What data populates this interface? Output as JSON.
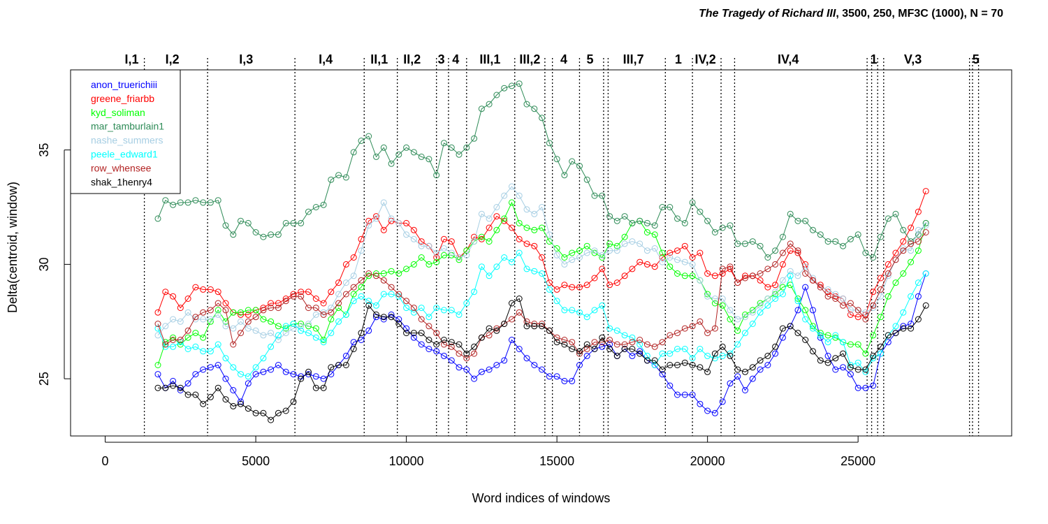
{
  "title": {
    "play": "The Tragedy of Richard III",
    "params": ", 3500, 250, MF3C (1000), N = 70"
  },
  "chart_data": {
    "type": "line",
    "xlabel": "Word indices of windows",
    "ylabel": "Delta(centroid, window)",
    "xlim": [
      -1150,
      30100
    ],
    "ylim": [
      22.5,
      38.5
    ],
    "xticks": [
      0,
      5000,
      10000,
      15000,
      20000,
      25000
    ],
    "xtick_labels": [
      "0",
      "5000",
      "10000",
      "15000",
      "20000",
      "25000"
    ],
    "yticks": [
      25,
      30,
      35
    ],
    "ytick_labels": [
      "25",
      "30",
      "35"
    ],
    "grid": false,
    "legend_placement": "top-left",
    "scene_boundaries": [
      1300,
      3400,
      6300,
      8600,
      9700,
      11000,
      11400,
      12000,
      13600,
      14600,
      14850,
      15750,
      16550,
      16700,
      18600,
      19500,
      20450,
      20900,
      25300,
      25450,
      25650,
      25850,
      28700,
      28800,
      29000
    ],
    "scene_labels": [
      {
        "label": "I,1",
        "x": 880
      },
      {
        "label": "I,2",
        "x": 2230
      },
      {
        "label": "I,3",
        "x": 4680
      },
      {
        "label": "I,4",
        "x": 7320
      },
      {
        "label": "II,1",
        "x": 9100
      },
      {
        "label": "II,2",
        "x": 10190
      },
      {
        "label": "3",
        "x": 11160
      },
      {
        "label": "4",
        "x": 11640
      },
      {
        "label": "III,1",
        "x": 12780
      },
      {
        "label": "III,2",
        "x": 14100
      },
      {
        "label": "4",
        "x": 15230
      },
      {
        "label": "5",
        "x": 16100
      },
      {
        "label": "III,7",
        "x": 17540
      },
      {
        "label": "1",
        "x": 19030
      },
      {
        "label": "IV,2",
        "x": 19930
      },
      {
        "label": "IV,4",
        "x": 22680
      },
      {
        "label": "1",
        "x": 25520
      },
      {
        "label": "V,3",
        "x": 26820
      },
      {
        "label": "5",
        "x": 28910
      }
    ],
    "x": [
      1750,
      2000,
      2250,
      2500,
      2750,
      3000,
      3250,
      3500,
      3750,
      4000,
      4250,
      4500,
      4750,
      5000,
      5250,
      5500,
      5750,
      6000,
      6250,
      6500,
      6750,
      7000,
      7250,
      7500,
      7750,
      8000,
      8250,
      8500,
      8750,
      9000,
      9250,
      9500,
      9750,
      10000,
      10250,
      10500,
      10750,
      11000,
      11250,
      11500,
      11750,
      12000,
      12250,
      12500,
      12750,
      13000,
      13250,
      13500,
      13750,
      14000,
      14250,
      14500,
      14750,
      15000,
      15250,
      15500,
      15750,
      16000,
      16250,
      16500,
      16750,
      17000,
      17250,
      17500,
      17750,
      18000,
      18250,
      18500,
      18750,
      19000,
      19250,
      19500,
      19750,
      20000,
      20250,
      20500,
      20750,
      21000,
      21250,
      21500,
      21750,
      22000,
      22250,
      22500,
      22750,
      23000,
      23250,
      23500,
      23750,
      24000,
      24250,
      24500,
      24750,
      25000,
      25250,
      25500,
      25750,
      26000,
      26250,
      26500,
      26750,
      27000,
      27250
    ],
    "series": [
      {
        "name": "anon_truerichiii",
        "color": "#0000ff",
        "values": [
          25.2,
          24.6,
          24.9,
          24.5,
          24.8,
          25.2,
          25.4,
          25.5,
          25.6,
          25.0,
          24.5,
          24.0,
          24.8,
          25.2,
          25.3,
          25.4,
          25.6,
          25.3,
          25.2,
          25.1,
          25.2,
          25.1,
          25.0,
          25.2,
          25.6,
          26.0,
          26.6,
          26.7,
          27.1,
          27.7,
          27.6,
          27.8,
          27.6,
          27.2,
          26.8,
          26.5,
          26.3,
          26.2,
          26.0,
          25.8,
          25.5,
          25.4,
          25.0,
          25.3,
          25.4,
          25.6,
          25.8,
          26.7,
          26.3,
          25.9,
          25.6,
          25.4,
          25.1,
          25.1,
          24.9,
          24.9,
          25.6,
          26.0,
          26.3,
          26.4,
          26.5,
          26.0,
          26.3,
          26.0,
          26.2,
          25.8,
          25.6,
          25.2,
          24.7,
          24.3,
          24.3,
          24.3,
          23.9,
          23.6,
          23.5,
          24.0,
          24.8,
          25.1,
          24.5,
          25.0,
          25.4,
          25.6,
          26.1,
          26.8,
          27.3,
          28.0,
          29.0,
          28.0,
          26.8,
          26.0,
          25.4,
          25.5,
          25.2,
          24.6,
          24.6,
          24.7,
          26.1,
          26.6,
          27.0,
          27.3,
          27.4,
          28.6,
          29.6
        ]
      },
      {
        "name": "greene_friarbb",
        "color": "#ff0000",
        "values": [
          27.9,
          28.8,
          28.6,
          28.1,
          28.5,
          29.0,
          28.9,
          28.9,
          28.8,
          28.3,
          27.9,
          27.8,
          27.8,
          28.0,
          28.1,
          28.3,
          28.3,
          28.5,
          28.7,
          28.8,
          28.8,
          28.5,
          28.3,
          28.8,
          29.2,
          30.0,
          30.3,
          31.1,
          31.9,
          32.1,
          31.5,
          31.9,
          31.8,
          31.8,
          31.5,
          31.0,
          30.8,
          30.3,
          31.1,
          31.0,
          30.3,
          30.6,
          31.2,
          31.1,
          31.6,
          32.1,
          31.9,
          31.6,
          31.1,
          30.9,
          30.8,
          30.3,
          29.2,
          28.9,
          29.1,
          29.0,
          29.0,
          29.1,
          29.4,
          29.8,
          29.1,
          29.2,
          29.5,
          29.8,
          30.1,
          30.0,
          29.9,
          30.3,
          30.5,
          30.6,
          30.8,
          30.3,
          30.5,
          29.6,
          29.5,
          29.6,
          29.8,
          29.2,
          29.5,
          29.5,
          29.3,
          29.0,
          29.1,
          30.0,
          30.6,
          30.5,
          30.0,
          29.3,
          29.1,
          28.8,
          28.6,
          28.5,
          27.8,
          27.7,
          27.8,
          28.8,
          29.4,
          30.0,
          30.5,
          31.0,
          31.6,
          32.3,
          33.2
        ]
      },
      {
        "name": "kyd_soliman",
        "color": "#00ff00",
        "values": [
          25.6,
          26.6,
          26.8,
          26.5,
          26.8,
          27.0,
          26.8,
          27.5,
          28.0,
          27.5,
          27.9,
          27.9,
          28.0,
          28.0,
          27.6,
          27.5,
          27.3,
          27.2,
          27.4,
          27.4,
          27.3,
          27.2,
          26.7,
          27.6,
          28.1,
          27.8,
          28.7,
          29.0,
          29.5,
          29.6,
          29.6,
          29.7,
          29.6,
          29.8,
          30.0,
          30.3,
          30.0,
          30.1,
          30.4,
          30.4,
          30.2,
          30.6,
          31.0,
          31.2,
          31.0,
          31.5,
          32.0,
          32.7,
          31.8,
          31.6,
          31.5,
          31.6,
          31.0,
          30.7,
          30.3,
          30.5,
          30.6,
          30.8,
          30.5,
          30.3,
          30.9,
          30.8,
          31.2,
          31.8,
          31.9,
          31.4,
          31.3,
          30.5,
          29.9,
          29.6,
          29.5,
          29.5,
          29.3,
          28.7,
          28.3,
          28.2,
          27.6,
          27.1,
          27.8,
          28.0,
          28.3,
          28.5,
          28.7,
          29.0,
          29.1,
          28.5,
          28.0,
          27.3,
          27.0,
          26.9,
          26.8,
          26.6,
          26.5,
          26.5,
          26.1,
          26.9,
          27.7,
          28.6,
          29.2,
          29.6,
          30.1,
          30.6,
          31.8
        ]
      },
      {
        "name": "mar_tamburlain1",
        "color": "#2e8b57",
        "values": [
          32.0,
          32.8,
          32.6,
          32.7,
          32.7,
          32.8,
          32.7,
          32.7,
          32.8,
          31.7,
          31.3,
          31.9,
          31.8,
          31.4,
          31.2,
          31.3,
          31.3,
          31.8,
          31.8,
          31.8,
          32.3,
          32.5,
          32.6,
          33.7,
          33.9,
          33.8,
          34.9,
          35.4,
          35.6,
          34.7,
          35.1,
          34.4,
          34.8,
          35.1,
          34.9,
          34.7,
          34.6,
          33.9,
          35.3,
          35.1,
          34.8,
          35.1,
          35.5,
          36.8,
          37.0,
          37.4,
          37.7,
          37.8,
          37.9,
          37.0,
          36.8,
          36.4,
          35.3,
          34.6,
          33.9,
          34.5,
          34.3,
          33.7,
          33.0,
          33.0,
          32.1,
          31.9,
          32.1,
          31.8,
          31.9,
          31.8,
          31.7,
          32.5,
          32.5,
          32.0,
          31.8,
          32.7,
          32.3,
          31.9,
          31.4,
          31.6,
          31.7,
          30.9,
          30.9,
          31.0,
          30.8,
          30.3,
          30.6,
          31.2,
          32.2,
          31.9,
          31.9,
          31.5,
          31.3,
          31.0,
          31.0,
          30.8,
          31.1,
          31.3,
          30.5,
          30.3,
          31.2,
          32.0,
          32.2,
          31.5,
          31.0,
          31.3,
          31.8
        ]
      },
      {
        "name": "nashe_summers",
        "color": "#a6cee3",
        "values": [
          26.9,
          27.3,
          27.6,
          27.5,
          27.9,
          27.6,
          27.6,
          27.6,
          27.8,
          27.3,
          27.2,
          27.5,
          27.2,
          27.1,
          26.9,
          27.0,
          26.7,
          27.0,
          27.2,
          27.3,
          27.4,
          27.8,
          27.9,
          28.1,
          28.7,
          29.2,
          29.5,
          30.6,
          31.7,
          32.0,
          32.7,
          32.0,
          31.8,
          31.3,
          31.1,
          30.8,
          30.8,
          30.5,
          30.7,
          30.5,
          30.3,
          30.4,
          31.0,
          32.2,
          32.0,
          32.5,
          33.0,
          33.4,
          33.0,
          32.4,
          32.2,
          32.5,
          31.3,
          30.4,
          30.0,
          30.2,
          30.3,
          30.5,
          30.6,
          30.4,
          30.6,
          30.6,
          30.9,
          31.0,
          30.9,
          30.6,
          30.7,
          30.1,
          30.3,
          30.2,
          30.1,
          30.0,
          29.3,
          28.6,
          28.5,
          28.5,
          28.0,
          27.6,
          27.7,
          27.9,
          28.2,
          28.5,
          28.8,
          29.3,
          29.7,
          29.5,
          29.9,
          29.4,
          29.0,
          28.9,
          28.7,
          28.5,
          28.0,
          28.0,
          27.9,
          28.1,
          28.6,
          29.5,
          30.2,
          30.7,
          30.6,
          31.5,
          31.7
        ]
      },
      {
        "name": "peele_edward1",
        "color": "#00ffff",
        "values": [
          27.2,
          26.4,
          26.4,
          26.6,
          26.3,
          26.4,
          26.2,
          26.2,
          26.5,
          25.9,
          25.5,
          25.2,
          25.1,
          25.5,
          25.9,
          26.4,
          26.9,
          27.3,
          27.4,
          27.1,
          27.0,
          26.8,
          26.6,
          27.0,
          27.5,
          27.8,
          28.4,
          28.6,
          28.4,
          28.2,
          28.7,
          28.7,
          28.6,
          28.1,
          27.9,
          28.1,
          27.7,
          28.1,
          28.0,
          28.0,
          27.8,
          28.3,
          28.8,
          29.9,
          29.5,
          29.9,
          30.3,
          30.1,
          30.5,
          29.8,
          29.7,
          29.6,
          28.9,
          28.4,
          28.0,
          28.0,
          27.9,
          27.7,
          28.0,
          28.2,
          27.2,
          27.1,
          26.9,
          26.8,
          26.5,
          26.0,
          25.6,
          26.1,
          26.1,
          26.3,
          26.3,
          25.9,
          26.3,
          26.0,
          25.9,
          26.0,
          26.1,
          26.5,
          27.0,
          27.4,
          27.9,
          28.2,
          28.5,
          28.7,
          29.5,
          28.4,
          27.6,
          27.2,
          26.9,
          26.6,
          26.9,
          26.6,
          25.6,
          25.7,
          25.3,
          25.9,
          26.1,
          26.9,
          27.3,
          27.9,
          28.6,
          29.2,
          29.6
        ]
      },
      {
        "name": "row_whensee",
        "color": "#b22222",
        "values": [
          27.4,
          26.5,
          26.7,
          26.7,
          27.1,
          27.7,
          27.9,
          28.0,
          28.3,
          28.0,
          26.5,
          27.0,
          27.5,
          27.7,
          28.0,
          28.1,
          28.1,
          28.4,
          28.6,
          28.6,
          28.1,
          28.1,
          27.8,
          27.9,
          28.3,
          28.7,
          29.0,
          29.3,
          29.6,
          29.5,
          29.3,
          29.0,
          28.7,
          28.4,
          28.1,
          27.6,
          27.3,
          27.0,
          26.5,
          26.4,
          26.1,
          25.9,
          26.1,
          26.8,
          26.9,
          27.2,
          27.4,
          27.6,
          27.9,
          27.5,
          27.4,
          27.4,
          27.1,
          26.8,
          26.7,
          26.6,
          26.1,
          26.3,
          26.6,
          26.6,
          26.7,
          26.5,
          26.5,
          26.6,
          26.7,
          26.5,
          26.4,
          26.6,
          26.9,
          27.0,
          27.2,
          27.3,
          27.5,
          27.0,
          27.2,
          29.8,
          29.9,
          29.2,
          29.4,
          29.5,
          29.6,
          29.8,
          30.0,
          30.5,
          30.9,
          30.6,
          29.6,
          29.3,
          29.0,
          28.6,
          28.5,
          28.2,
          28.3,
          28.0,
          27.6,
          28.2,
          28.9,
          29.6,
          30.2,
          30.6,
          30.9,
          31.0,
          31.4
        ]
      },
      {
        "name": "shak_1henry4",
        "color": "#000000",
        "values": [
          24.6,
          24.6,
          24.7,
          24.6,
          24.3,
          24.3,
          23.9,
          24.2,
          24.6,
          24.1,
          23.8,
          23.9,
          23.7,
          23.5,
          23.5,
          23.2,
          23.5,
          23.6,
          24.0,
          25.0,
          25.3,
          24.6,
          24.6,
          25.5,
          25.6,
          25.6,
          26.3,
          27.0,
          28.2,
          27.8,
          27.7,
          27.7,
          27.4,
          27.0,
          27.0,
          27.0,
          26.7,
          26.5,
          26.7,
          26.6,
          26.5,
          26.1,
          26.4,
          26.8,
          27.2,
          27.1,
          27.4,
          28.3,
          28.5,
          27.3,
          27.3,
          27.3,
          27.1,
          26.6,
          26.5,
          26.3,
          26.2,
          26.5,
          26.3,
          26.8,
          26.3,
          26.0,
          26.3,
          26.3,
          26.1,
          25.8,
          25.8,
          25.4,
          25.6,
          25.6,
          25.7,
          25.6,
          25.5,
          25.3,
          26.1,
          26.4,
          26.0,
          25.4,
          25.3,
          25.5,
          25.8,
          26.0,
          26.4,
          27.2,
          27.3,
          27.0,
          26.7,
          26.2,
          25.8,
          25.7,
          25.9,
          26.1,
          25.5,
          25.4,
          25.4,
          26.0,
          26.4,
          26.9,
          27.0,
          27.2,
          27.2,
          27.6,
          28.2
        ]
      }
    ]
  }
}
